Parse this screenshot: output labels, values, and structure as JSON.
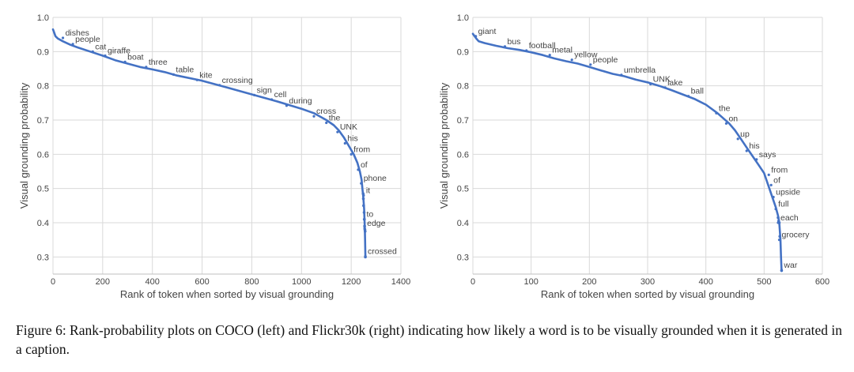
{
  "chart_data": [
    {
      "id": "left",
      "type": "line",
      "dataset": "COCO",
      "xlabel": "Rank of token when sorted by visual grounding",
      "ylabel": "Visual grounding probability",
      "xlim": [
        0,
        1400
      ],
      "ylim": [
        0.25,
        1.0
      ],
      "xticks": [
        0,
        200,
        400,
        600,
        800,
        1000,
        1200,
        1400
      ],
      "yticks": [
        0.3,
        0.4,
        0.5,
        0.6,
        0.7,
        0.8,
        0.9,
        1.0
      ],
      "grid": true,
      "series_color": "#4472c4",
      "curve": [
        [
          0,
          0.965
        ],
        [
          5,
          0.955
        ],
        [
          10,
          0.945
        ],
        [
          20,
          0.938
        ],
        [
          40,
          0.93
        ],
        [
          70,
          0.92
        ],
        [
          100,
          0.912
        ],
        [
          150,
          0.9
        ],
        [
          200,
          0.888
        ],
        [
          250,
          0.875
        ],
        [
          300,
          0.865
        ],
        [
          350,
          0.855
        ],
        [
          400,
          0.848
        ],
        [
          450,
          0.84
        ],
        [
          500,
          0.83
        ],
        [
          600,
          0.815
        ],
        [
          700,
          0.795
        ],
        [
          800,
          0.775
        ],
        [
          900,
          0.755
        ],
        [
          1000,
          0.733
        ],
        [
          1050,
          0.72
        ],
        [
          1100,
          0.7
        ],
        [
          1130,
          0.685
        ],
        [
          1150,
          0.67
        ],
        [
          1170,
          0.65
        ],
        [
          1190,
          0.625
        ],
        [
          1210,
          0.6
        ],
        [
          1225,
          0.575
        ],
        [
          1235,
          0.55
        ],
        [
          1242,
          0.525
        ],
        [
          1245,
          0.5
        ],
        [
          1248,
          0.48
        ],
        [
          1250,
          0.46
        ],
        [
          1252,
          0.44
        ],
        [
          1253,
          0.42
        ],
        [
          1254,
          0.4
        ],
        [
          1255,
          0.38
        ],
        [
          1256,
          0.35
        ],
        [
          1257,
          0.3
        ]
      ],
      "markers": [
        [
          1248,
          0.485
        ],
        [
          1249,
          0.47
        ],
        [
          1250,
          0.45
        ],
        [
          1252,
          0.43
        ],
        [
          1253,
          0.41
        ],
        [
          1254,
          0.39
        ],
        [
          1255,
          0.38
        ],
        [
          1256,
          0.375
        ],
        [
          1257,
          0.3
        ]
      ],
      "annotations": [
        {
          "text": "dishes",
          "x": 40,
          "y": 0.94
        },
        {
          "text": "people",
          "x": 80,
          "y": 0.922
        },
        {
          "text": "cat",
          "x": 160,
          "y": 0.9
        },
        {
          "text": "giraffe",
          "x": 210,
          "y": 0.888
        },
        {
          "text": "boat",
          "x": 290,
          "y": 0.87
        },
        {
          "text": "three",
          "x": 375,
          "y": 0.855
        },
        {
          "text": "table",
          "x": 485,
          "y": 0.833
        },
        {
          "text": "kite",
          "x": 580,
          "y": 0.817
        },
        {
          "text": "crossing",
          "x": 670,
          "y": 0.802
        },
        {
          "text": "sign",
          "x": 810,
          "y": 0.773
        },
        {
          "text": "cell",
          "x": 880,
          "y": 0.76
        },
        {
          "text": "during",
          "x": 940,
          "y": 0.742
        },
        {
          "text": "cross",
          "x": 1050,
          "y": 0.711
        },
        {
          "text": "the",
          "x": 1100,
          "y": 0.692
        },
        {
          "text": "UNK",
          "x": 1145,
          "y": 0.665
        },
        {
          "text": "his",
          "x": 1175,
          "y": 0.632
        },
        {
          "text": "from",
          "x": 1200,
          "y": 0.6
        },
        {
          "text": "of",
          "x": 1228,
          "y": 0.555
        },
        {
          "text": "phone",
          "x": 1240,
          "y": 0.515
        },
        {
          "text": "it",
          "x": 1250,
          "y": 0.48
        },
        {
          "text": "to",
          "x": 1252,
          "y": 0.41
        },
        {
          "text": "edge",
          "x": 1254,
          "y": 0.384
        },
        {
          "text": "crossed",
          "x": 1257,
          "y": 0.302
        }
      ]
    },
    {
      "id": "right",
      "type": "line",
      "dataset": "Flickr30k",
      "xlabel": "Rank of token when sorted by visual grounding",
      "ylabel": "Visual grounding probability",
      "xlim": [
        0,
        600
      ],
      "ylim": [
        0.25,
        1.0
      ],
      "xticks": [
        0,
        100,
        200,
        300,
        400,
        500,
        600
      ],
      "yticks": [
        0.3,
        0.4,
        0.5,
        0.6,
        0.7,
        0.8,
        0.9,
        1.0
      ],
      "grid": true,
      "series_color": "#4472c4",
      "curve": [
        [
          0,
          0.952
        ],
        [
          3,
          0.945
        ],
        [
          6,
          0.938
        ],
        [
          10,
          0.93
        ],
        [
          20,
          0.925
        ],
        [
          40,
          0.917
        ],
        [
          60,
          0.91
        ],
        [
          80,
          0.905
        ],
        [
          100,
          0.898
        ],
        [
          120,
          0.89
        ],
        [
          140,
          0.88
        ],
        [
          160,
          0.872
        ],
        [
          180,
          0.865
        ],
        [
          200,
          0.855
        ],
        [
          220,
          0.845
        ],
        [
          240,
          0.835
        ],
        [
          260,
          0.828
        ],
        [
          280,
          0.818
        ],
        [
          300,
          0.81
        ],
        [
          320,
          0.8
        ],
        [
          340,
          0.788
        ],
        [
          360,
          0.775
        ],
        [
          380,
          0.762
        ],
        [
          400,
          0.745
        ],
        [
          420,
          0.72
        ],
        [
          440,
          0.69
        ],
        [
          450,
          0.67
        ],
        [
          460,
          0.645
        ],
        [
          470,
          0.62
        ],
        [
          480,
          0.595
        ],
        [
          490,
          0.57
        ],
        [
          500,
          0.545
        ],
        [
          505,
          0.52
        ],
        [
          510,
          0.495
        ],
        [
          515,
          0.47
        ],
        [
          520,
          0.445
        ],
        [
          524,
          0.42
        ],
        [
          526,
          0.4
        ],
        [
          528,
          0.35
        ],
        [
          529,
          0.3
        ],
        [
          530,
          0.26
        ]
      ],
      "markers": [
        [
          524,
          0.415
        ],
        [
          525,
          0.405
        ],
        [
          526,
          0.4
        ],
        [
          527,
          0.36
        ],
        [
          530,
          0.26
        ]
      ],
      "annotations": [
        {
          "text": "giant",
          "x": 5,
          "y": 0.945
        },
        {
          "text": "bus",
          "x": 55,
          "y": 0.915
        },
        {
          "text": "football",
          "x": 92,
          "y": 0.903
        },
        {
          "text": "metal",
          "x": 132,
          "y": 0.89
        },
        {
          "text": "yellow",
          "x": 170,
          "y": 0.876
        },
        {
          "text": "people",
          "x": 202,
          "y": 0.862
        },
        {
          "text": "umbrella",
          "x": 255,
          "y": 0.832
        },
        {
          "text": "UNK",
          "x": 305,
          "y": 0.805
        },
        {
          "text": "lake",
          "x": 330,
          "y": 0.795
        },
        {
          "text": "ball",
          "x": 370,
          "y": 0.77
        },
        {
          "text": "the",
          "x": 418,
          "y": 0.72
        },
        {
          "text": "on",
          "x": 435,
          "y": 0.69
        },
        {
          "text": "up",
          "x": 455,
          "y": 0.645
        },
        {
          "text": "his",
          "x": 470,
          "y": 0.61
        },
        {
          "text": "says",
          "x": 487,
          "y": 0.585
        },
        {
          "text": "from",
          "x": 508,
          "y": 0.54
        },
        {
          "text": "of",
          "x": 512,
          "y": 0.51
        },
        {
          "text": "upside",
          "x": 516,
          "y": 0.475
        },
        {
          "text": "full",
          "x": 520,
          "y": 0.44
        },
        {
          "text": "each",
          "x": 524,
          "y": 0.4
        },
        {
          "text": "grocery",
          "x": 526,
          "y": 0.35
        },
        {
          "text": "war",
          "x": 530,
          "y": 0.262
        }
      ]
    }
  ],
  "caption": "Figure 6: Rank-probability plots on COCO (left) and Flickr30k (right) indicating how likely a word is to be visually grounded when it is generated in a caption."
}
